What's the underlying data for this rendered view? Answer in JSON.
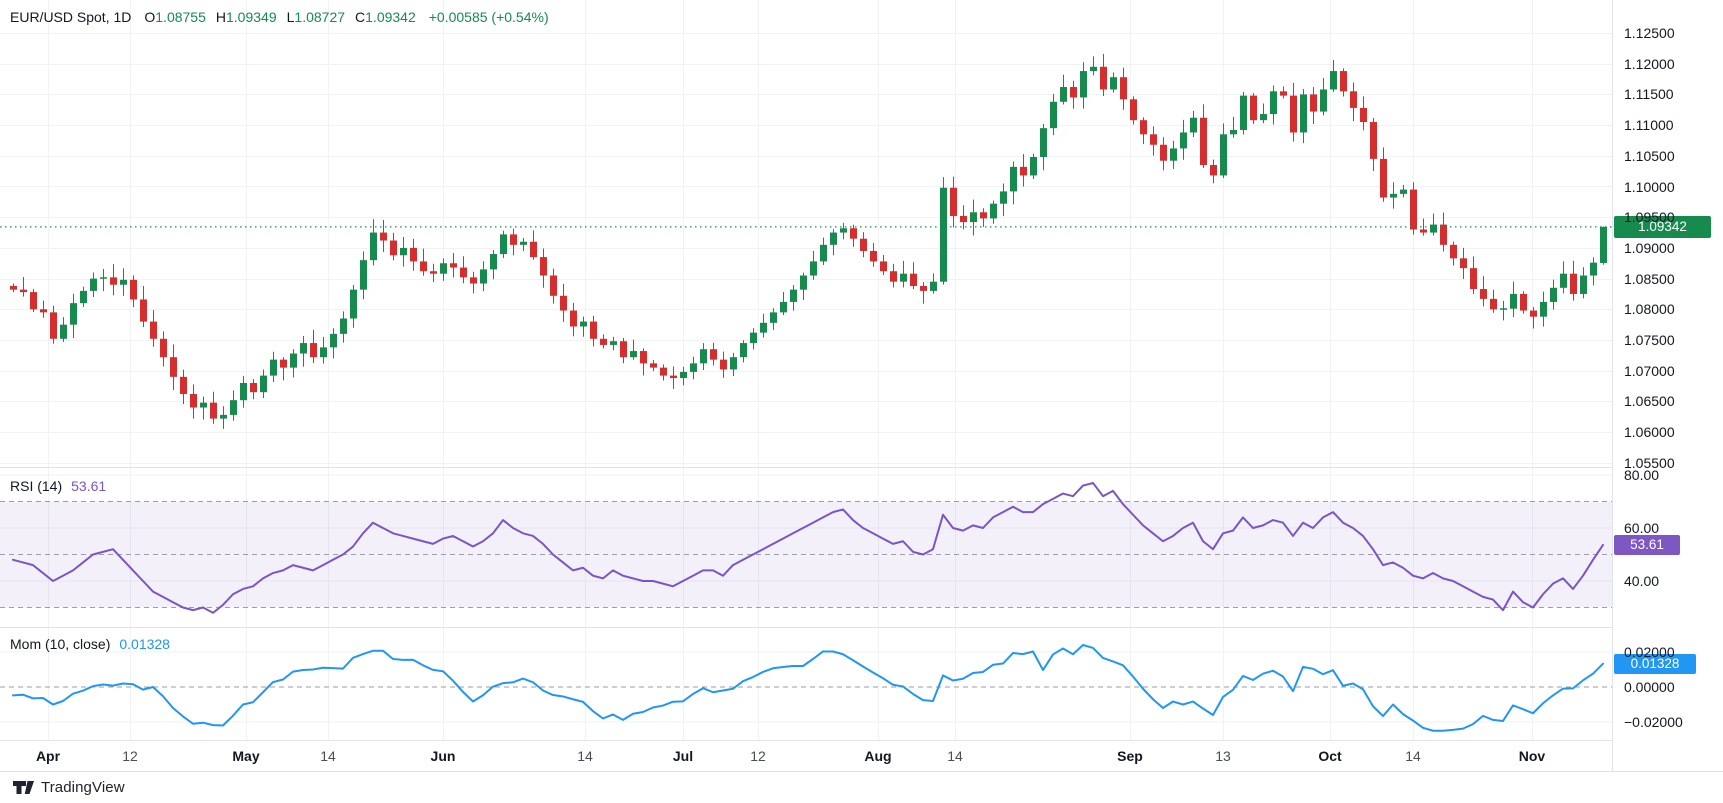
{
  "header": {
    "symbol": "EUR/USD Spot, 1D",
    "o_label": "O",
    "o": "1.08755",
    "h_label": "H",
    "h": "1.09349",
    "l_label": "L",
    "l": "1.08727",
    "c_label": "C",
    "c": "1.09342",
    "change": "+0.00585 (+0.54%)"
  },
  "colors": {
    "up": "#178a4e",
    "down": "#d42e2e",
    "price_line": "#178a4e",
    "rsi": "#7a55c7",
    "rsi_badge": "#7e57c2",
    "rsi_band_fill": "rgba(126,87,194,0.09)",
    "mom": "#2196f3",
    "grid": "#f0f2f6",
    "dashed": "#9b9ea8",
    "axis_text": "#131722"
  },
  "price_axis": {
    "labels": [
      "1.12500",
      "1.12000",
      "1.11500",
      "1.11000",
      "1.10500",
      "1.10000",
      "1.09500",
      "1.09000",
      "1.08500",
      "1.08000",
      "1.07500",
      "1.07000",
      "1.06500",
      "1.06000",
      "1.05500"
    ],
    "last_price_badge": "1.09342"
  },
  "time_axis": {
    "ticks": [
      {
        "label": "Apr",
        "i": 3.5,
        "major": true
      },
      {
        "label": "12",
        "i": 11.7,
        "major": false
      },
      {
        "label": "May",
        "i": 23.3,
        "major": true
      },
      {
        "label": "14",
        "i": 31.5,
        "major": false
      },
      {
        "label": "Jun",
        "i": 43.0,
        "major": true
      },
      {
        "label": "14",
        "i": 57.2,
        "major": false
      },
      {
        "label": "Jul",
        "i": 67.0,
        "major": true
      },
      {
        "label": "12",
        "i": 74.5,
        "major": false
      },
      {
        "label": "Aug",
        "i": 86.5,
        "major": true
      },
      {
        "label": "14",
        "i": 94.2,
        "major": false
      },
      {
        "label": "Sep",
        "i": 111.7,
        "major": true
      },
      {
        "label": "13",
        "i": 121.0,
        "major": false
      },
      {
        "label": "Oct",
        "i": 131.7,
        "major": true
      },
      {
        "label": "14",
        "i": 140.0,
        "major": false
      },
      {
        "label": "Nov",
        "i": 151.9,
        "major": true
      }
    ]
  },
  "indicators": {
    "rsi": {
      "name": "RSI (14)",
      "value": "53.61",
      "axis_labels": [
        "80.00",
        "60.00",
        "40.00"
      ],
      "axis_values": [
        80,
        60,
        40
      ],
      "dashed_levels": [
        70,
        50,
        30
      ],
      "band": [
        30,
        70
      ]
    },
    "mom": {
      "name": "Mom (10, close)",
      "value": "0.01328",
      "axis_labels": [
        "0.02000",
        "0.00000",
        "−0.02000"
      ],
      "axis_values": [
        0.02,
        0,
        -0.02
      ],
      "dashed_levels": [
        0
      ]
    }
  },
  "footer": {
    "brand": "TradingView"
  },
  "chart_data": {
    "type": "candlestick",
    "symbol": "EUR/USD Spot",
    "timeframe": "1D",
    "title": "EUR/USD Spot, 1D with RSI(14) and Momentum(10, close)",
    "visible_price_range": [
      1.0559,
      1.1304
    ],
    "price_grid_step": 0.005,
    "x_range_months": [
      "Apr",
      "May",
      "Jun",
      "Jul",
      "Aug",
      "Sep",
      "Oct",
      "Nov"
    ],
    "last_candle": {
      "open": 1.08755,
      "high": 1.09349,
      "low": 1.08727,
      "close": 1.09342,
      "change_abs": 0.00585,
      "change_pct": 0.54
    },
    "pre_closes": [
      1.088,
      1.0872,
      1.0865,
      1.0858,
      1.0852,
      1.0855,
      1.0848,
      1.0851,
      1.0845,
      1.0838
    ],
    "closes": [
      1.0832,
      1.0828,
      1.08,
      1.0795,
      1.0752,
      1.0775,
      1.081,
      1.083,
      1.085,
      1.0852,
      1.084,
      1.0848,
      1.0816,
      1.078,
      1.0752,
      1.0722,
      1.069,
      1.0662,
      1.064,
      1.0648,
      1.0622,
      1.0628,
      1.0652,
      1.068,
      1.0665,
      1.0692,
      1.0718,
      1.0705,
      1.0728,
      1.0745,
      1.0722,
      1.0738,
      1.076,
      1.0785,
      1.0832,
      1.088,
      1.0925,
      1.0912,
      1.0888,
      1.09,
      1.0878,
      1.0862,
      1.0858,
      1.0875,
      1.0868,
      1.0852,
      1.0842,
      1.0865,
      1.089,
      1.0922,
      1.0905,
      1.091,
      1.0885,
      1.0855,
      1.0822,
      1.0798,
      1.0772,
      1.078,
      1.0752,
      1.0742,
      1.0748,
      1.0722,
      1.0732,
      1.0712,
      1.0705,
      1.0692,
      1.0688,
      1.0698,
      1.0712,
      1.0735,
      1.0718,
      1.0702,
      1.0722,
      1.0745,
      1.0762,
      1.0778,
      1.0795,
      1.0812,
      1.0832,
      1.0855,
      1.0878,
      1.0905,
      1.0925,
      1.0932,
      1.0915,
      1.0895,
      1.0878,
      1.0862,
      1.0845,
      1.0858,
      1.0838,
      1.083,
      1.0845,
      1.0998,
      1.0952,
      1.0942,
      1.0958,
      1.0948,
      1.0972,
      1.0992,
      1.1032,
      1.1018,
      1.1048,
      1.1095,
      1.1138,
      1.1162,
      1.1145,
      1.1188,
      1.1195,
      1.1158,
      1.1178,
      1.1142,
      1.1108,
      1.1085,
      1.1068,
      1.1042,
      1.1062,
      1.1088,
      1.1112,
      1.1035,
      1.1018,
      1.1085,
      1.1092,
      1.1148,
      1.1108,
      1.1118,
      1.1155,
      1.1148,
      1.1088,
      1.115,
      1.1122,
      1.1158,
      1.1188,
      1.1155,
      1.1128,
      1.1105,
      1.1045,
      1.0982,
      1.0988,
      1.0995,
      1.093,
      1.0925,
      1.0938,
      1.0905,
      1.0883,
      1.0867,
      1.0833,
      1.0817,
      1.08,
      1.0801,
      1.0825,
      1.0798,
      1.0788,
      1.0812,
      1.0835,
      1.0858,
      1.0825,
      1.0855,
      1.0876,
      1.09342
    ],
    "rsi": {
      "period": 14,
      "last": 53.61,
      "band": [
        30,
        70
      ],
      "overbought": 70,
      "oversold": 30,
      "values": [
        48,
        47,
        46,
        43,
        40,
        42,
        44,
        47,
        50,
        51,
        52,
        48,
        44,
        40,
        36,
        34,
        32,
        30,
        29,
        30,
        28,
        31,
        35,
        37,
        38,
        41,
        43,
        44,
        46,
        45,
        44,
        46,
        48,
        50,
        53,
        58,
        62,
        60,
        58,
        57,
        56,
        55,
        54,
        56,
        57,
        55,
        53,
        55,
        58,
        63,
        60,
        58,
        57,
        54,
        50,
        47,
        44,
        45,
        42,
        41,
        44,
        42,
        41,
        40,
        40,
        39,
        38,
        40,
        42,
        44,
        44,
        42,
        46,
        48,
        50,
        52,
        54,
        56,
        58,
        60,
        62,
        64,
        66,
        67,
        63,
        60,
        58,
        56,
        54,
        55,
        51,
        50,
        52,
        65,
        60,
        59,
        61,
        60,
        64,
        66,
        68,
        66,
        66,
        69,
        71,
        73,
        72,
        76,
        77,
        72,
        74,
        69,
        65,
        61,
        58,
        55,
        57,
        60,
        62,
        55,
        52,
        58,
        59,
        64,
        60,
        61,
        63,
        62,
        57,
        62,
        60,
        64,
        66,
        62,
        60,
        57,
        52,
        46,
        47,
        45,
        42,
        41,
        43,
        41,
        40,
        38,
        36,
        34,
        33,
        29,
        36,
        32,
        30,
        35,
        39,
        41,
        37,
        42,
        48,
        53.61
      ]
    },
    "momentum": {
      "period": 10,
      "source": "close",
      "last": 0.01328,
      "note": "values = closes[i] - closes[i-10], pre_closes used for i<10"
    }
  }
}
